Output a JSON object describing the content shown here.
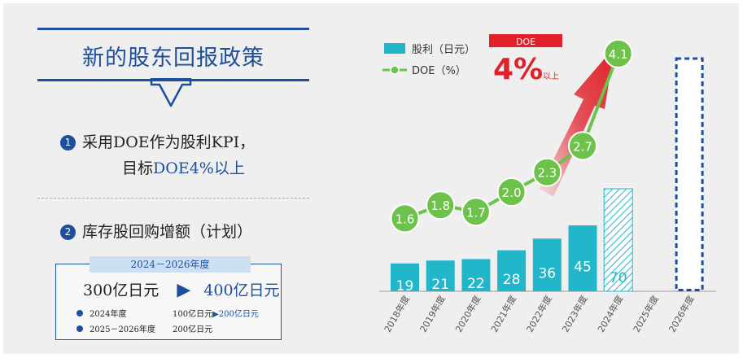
{
  "left": {
    "title": "新的股东回报政策",
    "item1_num": "1",
    "item1_line1": "采用DOE作为股利KPI，",
    "item1_line2a": "目标",
    "item1_line2b": "DOE4%以上",
    "item2_num": "2",
    "item2_text": "库存股回购增额（计划）",
    "buyback": {
      "period": "2024－2026年度",
      "from": "300亿日元",
      "to": "400亿日元",
      "row1_label": "2024年度",
      "row1_value_a": "100亿日元",
      "row1_value_b": "200亿日元",
      "row2_label": "2025－2026年度",
      "row2_value": "200亿日元"
    }
  },
  "colors": {
    "navy": "#1e4f9c",
    "teal": "#22b6cb",
    "green": "#6cc24a",
    "red": "#e0202a"
  },
  "chart_data": {
    "type": "bar",
    "categories": [
      "2018年度",
      "2019年度",
      "2020年度",
      "2021年度",
      "2022年度",
      "2023年度",
      "2024年度",
      "2025年度",
      "2026年度"
    ],
    "series": [
      {
        "name": "股利（日元）",
        "type": "bar",
        "values": [
          19,
          21,
          22,
          28,
          36,
          45,
          70,
          null,
          null
        ]
      },
      {
        "name": "DOE（%）",
        "type": "line",
        "values": [
          1.6,
          1.8,
          1.7,
          2.0,
          2.3,
          2.7,
          4.1,
          null,
          null
        ]
      }
    ],
    "bar_styles": [
      "solid",
      "solid",
      "solid",
      "solid",
      "solid",
      "solid",
      "hatched",
      "none",
      "dashed-outline"
    ],
    "dividend_labels": [
      "19",
      "21",
      "22",
      "28",
      "36",
      "45",
      "70"
    ],
    "doe_labels": [
      "1.6",
      "1.8",
      "1.7",
      "2.0",
      "2.3",
      "2.7",
      "4.1"
    ],
    "legend": [
      {
        "label": "股利（日元）",
        "icon": "teal-square"
      },
      {
        "label": "DOE（%）",
        "icon": "green-line-dot"
      }
    ],
    "legend_position": "top-left",
    "annotation": {
      "tag": "DOE",
      "value": "4%",
      "suffix": "以上"
    },
    "grid": false
  }
}
